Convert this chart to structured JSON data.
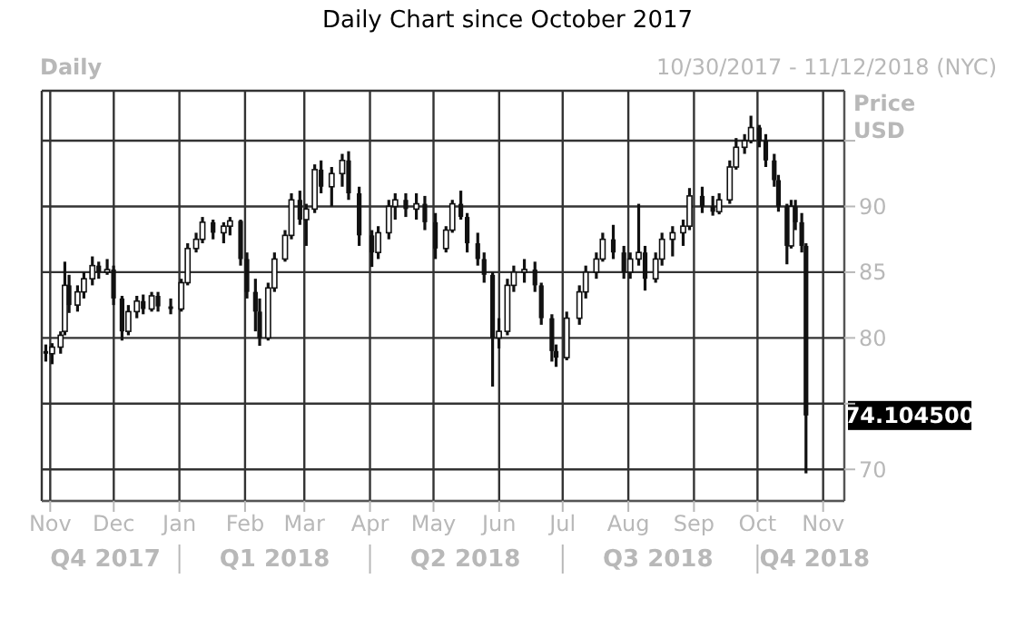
{
  "chart_data": {
    "type": "candlestick",
    "title": "Daily Chart since October 2017",
    "subtitle": "10/30/2017 - 11/12/2018 (NYC)",
    "ylabel": "Price USD",
    "annotations": [
      "Daily",
      "74.104500"
    ],
    "color": "#111111",
    "grid": true,
    "xlim": [
      "2017-10-28",
      "2018-11-11"
    ],
    "xticks": [
      {
        "value": "2017-11-01",
        "label": "Nov"
      },
      {
        "value": "2017-12-01",
        "label": "Dec"
      },
      {
        "value": "2018-01-01",
        "label": "Jan"
      },
      {
        "value": "2018-02-01",
        "label": "Feb"
      },
      {
        "value": "2018-03-01",
        "label": "Mar"
      },
      {
        "value": "2018-04-01",
        "label": "Apr"
      },
      {
        "value": "2018-05-01",
        "label": "May"
      },
      {
        "value": "2018-06-01",
        "label": "Jun"
      },
      {
        "value": "2018-07-01",
        "label": "Jul"
      },
      {
        "value": "2018-08-01",
        "label": "Aug"
      },
      {
        "value": "2018-09-01",
        "label": "Sep"
      },
      {
        "value": "2018-10-01",
        "label": "Oct"
      },
      {
        "value": "2018-11-01",
        "label": "Nov"
      }
    ],
    "x2lim": [
      "2017-10-28",
      "2018-11-11"
    ],
    "x2ticks": [
      {
        "value": "2017-11-27",
        "label": "Q4 2017"
      },
      {
        "value": "2018-01-01",
        "label": null
      },
      {
        "value": "2018-02-15",
        "label": "Q1 2018"
      },
      {
        "value": "2018-04-01",
        "label": null
      },
      {
        "value": "2018-05-16",
        "label": "Q2 2018"
      },
      {
        "value": "2018-07-01",
        "label": null
      },
      {
        "value": "2018-08-15",
        "label": "Q3 2018"
      },
      {
        "value": "2018-10-01",
        "label": null
      },
      {
        "value": "2018-10-28",
        "label": "Q4 2018"
      }
    ],
    "ylim": [
      67.6,
      98.8
    ],
    "yticks": [
      70,
      {
        "value": 75,
        "label": null
      },
      80,
      85,
      90,
      {
        "value": 95,
        "label": null
      }
    ],
    "x": [
      "2017-10-30",
      "2017-11-02",
      "2017-11-06",
      "2017-11-08",
      "2017-11-10",
      "2017-11-14",
      "2017-11-17",
      "2017-11-21",
      "2017-11-24",
      "2017-11-28",
      "2017-12-01",
      "2017-12-05",
      "2017-12-08",
      "2017-12-12",
      "2017-12-15",
      "2017-12-19",
      "2017-12-22",
      "2017-12-28",
      "2018-01-02",
      "2018-01-05",
      "2018-01-09",
      "2018-01-12",
      "2018-01-17",
      "2018-01-22",
      "2018-01-25",
      "2018-01-30",
      "2018-02-02",
      "2018-02-06",
      "2018-02-08",
      "2018-02-12",
      "2018-02-15",
      "2018-02-20",
      "2018-02-23",
      "2018-02-27",
      "2018-03-02",
      "2018-03-06",
      "2018-03-09",
      "2018-03-14",
      "2018-03-19",
      "2018-03-22",
      "2018-03-27",
      "2018-04-02",
      "2018-04-05",
      "2018-04-10",
      "2018-04-13",
      "2018-04-18",
      "2018-04-23",
      "2018-04-27",
      "2018-05-02",
      "2018-05-07",
      "2018-05-10",
      "2018-05-14",
      "2018-05-17",
      "2018-05-22",
      "2018-05-25",
      "2018-05-29",
      "2018-06-01",
      "2018-06-05",
      "2018-06-08",
      "2018-06-13",
      "2018-06-18",
      "2018-06-21",
      "2018-06-26",
      "2018-06-28",
      "2018-07-03",
      "2018-07-09",
      "2018-07-12",
      "2018-07-17",
      "2018-07-20",
      "2018-07-25",
      "2018-07-30",
      "2018-08-02",
      "2018-08-06",
      "2018-08-09",
      "2018-08-14",
      "2018-08-17",
      "2018-08-22",
      "2018-08-27",
      "2018-08-30",
      "2018-09-05",
      "2018-09-10",
      "2018-09-13",
      "2018-09-18",
      "2018-09-21",
      "2018-09-25",
      "2018-09-28",
      "2018-10-02",
      "2018-10-05",
      "2018-10-09",
      "2018-10-11",
      "2018-10-15",
      "2018-10-17",
      "2018-10-19",
      "2018-10-22",
      "2018-10-24"
    ],
    "ohlc": [
      [
        79,
        79.5,
        78.2,
        78.8
      ],
      [
        78.8,
        79.6,
        78,
        79.3
      ],
      [
        79.3,
        80.5,
        78.8,
        80.2
      ],
      [
        80.5,
        85.8,
        80.2,
        84
      ],
      [
        84,
        84.8,
        81.9,
        82.5
      ],
      [
        82.5,
        84,
        82,
        83.5
      ],
      [
        83.5,
        85,
        83,
        84.5
      ],
      [
        84.5,
        86.2,
        84,
        85.5
      ],
      [
        85.5,
        85.8,
        84.5,
        85
      ],
      [
        85,
        86,
        84.8,
        85.2
      ],
      [
        85.2,
        85.5,
        82.5,
        83
      ],
      [
        83,
        83.2,
        79.8,
        80.5
      ],
      [
        80.5,
        82.5,
        80.2,
        82
      ],
      [
        82,
        83.2,
        81.5,
        82.8
      ],
      [
        82.8,
        83.3,
        81.8,
        82.2
      ],
      [
        82.2,
        83.5,
        82,
        83.2
      ],
      [
        83.2,
        83.5,
        82,
        82.4
      ],
      [
        82.4,
        83,
        81.8,
        82.2
      ],
      [
        82.2,
        84.5,
        82,
        84.2
      ],
      [
        84.2,
        87.2,
        84,
        86.8
      ],
      [
        86.8,
        88,
        86.5,
        87.5
      ],
      [
        87.5,
        89.2,
        87.2,
        88.8
      ],
      [
        88.8,
        89,
        87.5,
        88
      ],
      [
        88,
        88.8,
        87.2,
        88.5
      ],
      [
        88.5,
        89.2,
        87.8,
        88.9
      ],
      [
        88.9,
        89,
        85.5,
        86
      ],
      [
        86,
        86.5,
        83,
        83.5
      ],
      [
        83.5,
        84.5,
        80.5,
        82
      ],
      [
        82,
        83,
        79.4,
        80
      ],
      [
        80,
        84.2,
        79.8,
        83.8
      ],
      [
        83.8,
        86.5,
        83.5,
        86
      ],
      [
        86,
        88.2,
        85.8,
        87.8
      ],
      [
        87.8,
        91,
        87.5,
        90.5
      ],
      [
        90.5,
        91.2,
        88.6,
        89
      ],
      [
        89,
        90.2,
        87,
        89.8
      ],
      [
        89.8,
        93.2,
        89.5,
        92.8
      ],
      [
        92.8,
        93.5,
        91,
        91.5
      ],
      [
        91.5,
        93,
        90,
        92.5
      ],
      [
        92.5,
        94,
        91.5,
        93.5
      ],
      [
        93.5,
        94.2,
        90.5,
        91
      ],
      [
        91,
        91.5,
        87,
        87.8
      ],
      [
        87.8,
        88.2,
        85.4,
        86.5
      ],
      [
        86.5,
        88.5,
        86,
        88
      ],
      [
        88,
        90.5,
        87.5,
        90
      ],
      [
        90,
        91,
        89,
        90.5
      ],
      [
        90.5,
        91,
        89.2,
        89.8
      ],
      [
        89.8,
        91,
        89,
        90.2
      ],
      [
        90.2,
        90.8,
        88.2,
        88.8
      ],
      [
        88.8,
        89.5,
        86,
        86.8
      ],
      [
        86.8,
        88.5,
        86.5,
        88.2
      ],
      [
        88.2,
        90.5,
        88,
        90.2
      ],
      [
        90.2,
        91.2,
        89,
        89.2
      ],
      [
        89.2,
        89.5,
        86.5,
        87.2
      ],
      [
        87.2,
        88,
        85.5,
        86
      ],
      [
        86,
        86.5,
        84.2,
        84.8
      ],
      [
        84.8,
        85,
        76.3,
        80
      ],
      [
        80,
        81.5,
        79.2,
        80.5
      ],
      [
        80.5,
        84.5,
        80.2,
        84
      ],
      [
        84,
        85.5,
        83.5,
        85
      ],
      [
        85,
        86,
        84.2,
        85.2
      ],
      [
        85.2,
        85.8,
        83.5,
        84
      ],
      [
        84,
        84.2,
        81,
        81.5
      ],
      [
        81.5,
        81.8,
        78.2,
        79
      ],
      [
        79,
        79.5,
        77.8,
        78.5
      ],
      [
        78.5,
        82,
        78.3,
        81.5
      ],
      [
        81.5,
        84,
        81,
        83.5
      ],
      [
        83.5,
        85.5,
        83,
        85
      ],
      [
        85,
        86.5,
        84.5,
        86
      ],
      [
        86,
        88,
        85.8,
        87.5
      ],
      [
        87.5,
        88.6,
        86,
        86.5
      ],
      [
        86.5,
        87,
        84.5,
        85
      ],
      [
        85,
        86.5,
        84.5,
        86
      ],
      [
        86,
        90.2,
        85.5,
        86.5
      ],
      [
        86.5,
        87,
        83.6,
        84.5
      ],
      [
        84.5,
        86.5,
        84.2,
        86
      ],
      [
        86,
        88,
        85.5,
        87.5
      ],
      [
        87.5,
        88.5,
        86.2,
        88
      ],
      [
        88,
        89,
        87,
        88.5
      ],
      [
        88.5,
        91.4,
        88.2,
        90.8
      ],
      [
        90.8,
        91.5,
        89.5,
        90
      ],
      [
        90,
        90.8,
        89.3,
        89.6
      ],
      [
        89.6,
        91,
        89.4,
        90.5
      ],
      [
        90.5,
        93.5,
        90.2,
        93
      ],
      [
        93,
        95.2,
        92.8,
        94.5
      ],
      [
        94.5,
        95.5,
        94,
        95
      ],
      [
        95,
        96.9,
        94.8,
        96
      ],
      [
        96,
        96.2,
        94.5,
        95
      ],
      [
        95,
        95.5,
        93,
        93.5
      ],
      [
        93.5,
        94,
        91.5,
        92
      ],
      [
        92,
        92.4,
        89.6,
        90
      ],
      [
        90,
        90.2,
        85.6,
        87
      ],
      [
        87,
        90.5,
        86.8,
        90
      ],
      [
        90,
        90.5,
        88.2,
        88.8
      ],
      [
        88.8,
        89.5,
        86.5,
        87
      ],
      [
        87,
        87.2,
        69.7,
        74.1
      ]
    ]
  }
}
